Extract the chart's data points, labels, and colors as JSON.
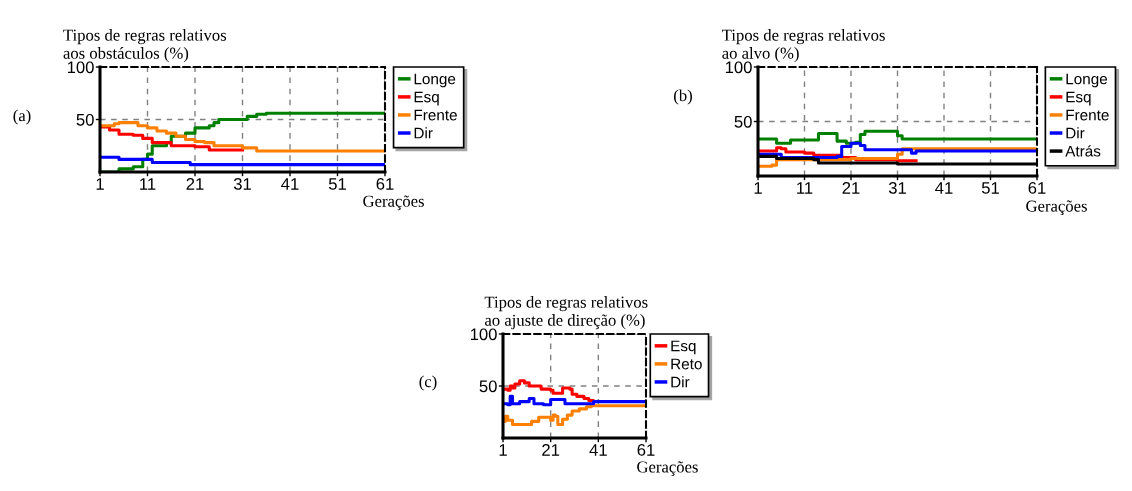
{
  "chart_data": [
    {
      "type": "step",
      "title": "Tipos de regras relativos\naos obstáculos (%)",
      "xlabel": "Gerações",
      "annotations": [
        "(a)"
      ],
      "xlim": [
        1,
        61
      ],
      "xticks": [
        1,
        11,
        21,
        31,
        41,
        51,
        61
      ],
      "ylim": [
        0,
        100
      ],
      "yticks": [
        50,
        100
      ],
      "grid": true,
      "legend": "right",
      "line_style": "solid",
      "marker": "none",
      "series": [
        {
          "name": "Longe",
          "color": "#008000",
          "x": [
            1,
            5,
            8,
            10,
            11,
            12,
            15,
            16,
            19,
            21,
            24,
            25,
            26,
            31,
            32,
            34,
            36,
            61
          ],
          "values": [
            0,
            3,
            5,
            12,
            17,
            25,
            28,
            34,
            37,
            42,
            44,
            47,
            50,
            50,
            53,
            55,
            56,
            56
          ]
        },
        {
          "name": "Esq",
          "color": "#ff0000",
          "x": [
            1,
            3,
            5,
            8,
            10,
            12,
            16,
            21,
            24,
            31
          ],
          "values": [
            43,
            40,
            36,
            35,
            32,
            28,
            25,
            24,
            21,
            21
          ]
        },
        {
          "name": "Frente",
          "color": "#ff8000",
          "x": [
            1,
            4,
            5,
            8,
            9,
            11,
            13,
            15,
            17,
            19,
            21,
            23,
            25,
            31,
            34,
            61
          ],
          "values": [
            44,
            46,
            47,
            47,
            44,
            42,
            39,
            37,
            34,
            31,
            29,
            28,
            25,
            23,
            20,
            20
          ]
        },
        {
          "name": "Dir",
          "color": "#0000ff",
          "x": [
            1,
            5,
            11,
            12,
            19,
            20,
            61
          ],
          "values": [
            14,
            12,
            12,
            9,
            9,
            7,
            7
          ]
        }
      ]
    },
    {
      "type": "step",
      "title": "Tipos de regras relativos\nao alvo (%)",
      "xlabel": "Gerações",
      "annotations": [
        "(b)"
      ],
      "xlim": [
        1,
        61
      ],
      "xticks": [
        1,
        11,
        21,
        31,
        41,
        51,
        61
      ],
      "ylim": [
        0,
        100
      ],
      "yticks": [
        50,
        100
      ],
      "grid": true,
      "legend": "right",
      "line_style": "solid",
      "marker": "none",
      "series": [
        {
          "name": "Longe",
          "color": "#008000",
          "x": [
            1,
            4,
            5,
            7,
            8,
            13,
            14,
            17,
            18,
            20,
            22,
            23,
            24,
            30,
            31,
            32,
            61
          ],
          "values": [
            34,
            34,
            30,
            30,
            33,
            33,
            39,
            39,
            32,
            30,
            31,
            38,
            41,
            41,
            37,
            34,
            34
          ]
        },
        {
          "name": "Esq",
          "color": "#ff0000",
          "x": [
            1,
            4,
            5,
            6,
            7,
            11,
            13,
            19,
            22,
            31,
            35
          ],
          "values": [
            23,
            23,
            26,
            25,
            22,
            21,
            19,
            17,
            15,
            14,
            14
          ]
        },
        {
          "name": "Frente",
          "color": "#ff8000",
          "x": [
            1,
            3,
            4,
            5,
            13,
            21,
            30,
            31,
            32,
            61
          ],
          "values": [
            9,
            9,
            10,
            15,
            15,
            16,
            16,
            20,
            25,
            25
          ]
        },
        {
          "name": "Dir",
          "color": "#0000ff",
          "x": [
            1,
            5,
            6,
            14,
            18,
            19,
            21,
            23,
            24,
            33,
            34,
            35,
            61
          ],
          "values": [
            20,
            20,
            17,
            17,
            18,
            27,
            30,
            28,
            24,
            24,
            21,
            23,
            23
          ]
        },
        {
          "name": "Atrás",
          "color": "#000000",
          "x": [
            1,
            4,
            5,
            13,
            14,
            30,
            31,
            61
          ],
          "values": [
            18,
            18,
            16,
            15,
            12,
            12,
            11,
            11
          ]
        }
      ]
    },
    {
      "type": "step",
      "title": "Tipos de regras relativos\nao ajuste de direção (%)",
      "xlabel": "Gerações",
      "annotations": [
        "(c)"
      ],
      "xlim": [
        1,
        61
      ],
      "xticks": [
        1,
        21,
        41,
        61
      ],
      "ylim": [
        0,
        100
      ],
      "yticks": [
        50,
        100
      ],
      "grid": true,
      "legend": "right",
      "line_style": "solid",
      "marker": "none",
      "series": [
        {
          "name": "Esq",
          "color": "#ff0000",
          "x": [
            1,
            3,
            4,
            5,
            6,
            8,
            10,
            12,
            16,
            17,
            21,
            22,
            25,
            26,
            29,
            30,
            32,
            35,
            37,
            39
          ],
          "values": [
            47,
            46,
            50,
            48,
            52,
            55,
            53,
            50,
            50,
            47,
            46,
            43,
            43,
            48,
            47,
            42,
            40,
            38,
            36,
            35
          ]
        },
        {
          "name": "Reto",
          "color": "#ff8000",
          "x": [
            1,
            2,
            3,
            5,
            12,
            13,
            16,
            20,
            21,
            22,
            23,
            24,
            26,
            28,
            30,
            33,
            36,
            38,
            61
          ],
          "values": [
            16,
            21,
            17,
            13,
            13,
            16,
            20,
            20,
            17,
            22,
            21,
            13,
            18,
            22,
            26,
            28,
            30,
            31,
            31
          ]
        },
        {
          "name": "Dir",
          "color": "#0000ff",
          "x": [
            1,
            3,
            4,
            5,
            8,
            12,
            14,
            18,
            21,
            26,
            27,
            38,
            39,
            61
          ],
          "values": [
            33,
            32,
            40,
            33,
            35,
            38,
            33,
            32,
            37,
            37,
            33,
            33,
            35,
            35
          ]
        }
      ]
    }
  ]
}
